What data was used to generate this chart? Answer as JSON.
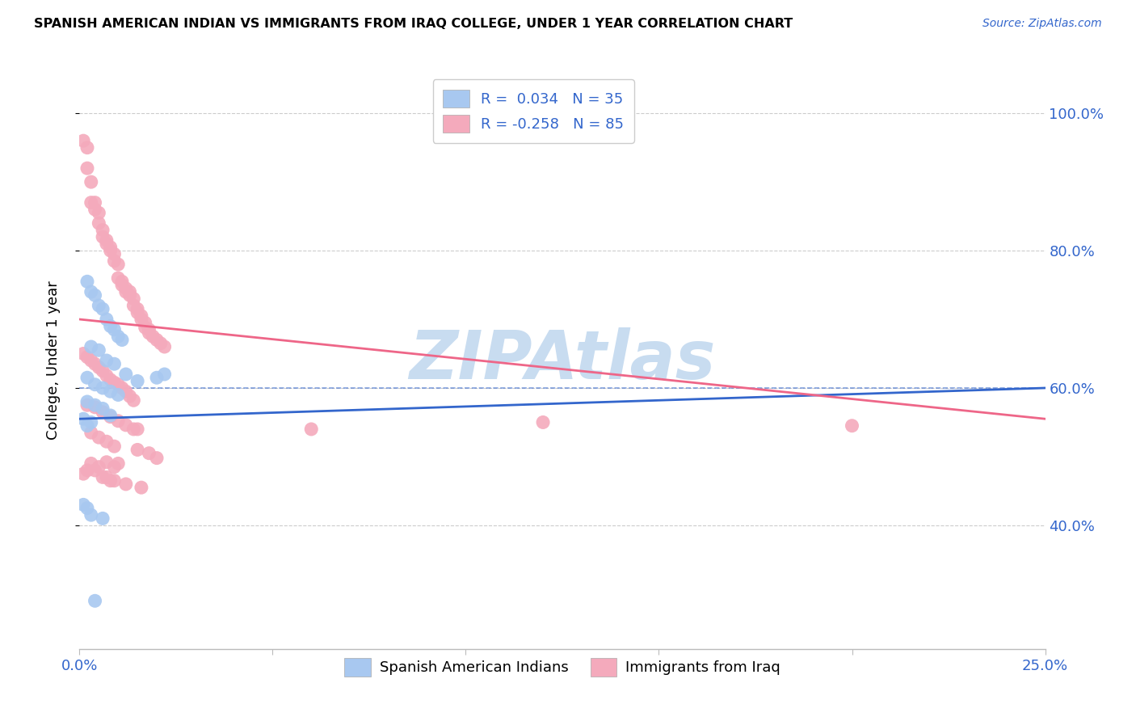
{
  "title": "SPANISH AMERICAN INDIAN VS IMMIGRANTS FROM IRAQ COLLEGE, UNDER 1 YEAR CORRELATION CHART",
  "source": "Source: ZipAtlas.com",
  "ylabel": "College, Under 1 year",
  "ytick_labels": [
    "40.0%",
    "60.0%",
    "80.0%",
    "100.0%"
  ],
  "ytick_values": [
    0.4,
    0.6,
    0.8,
    1.0
  ],
  "xmin": 0.0,
  "xmax": 0.25,
  "ymin": 0.22,
  "ymax": 1.06,
  "blue_color": "#A8C8F0",
  "pink_color": "#F4AABC",
  "blue_line_color": "#3366CC",
  "pink_line_color": "#EE6688",
  "legend_R_blue": "0.034",
  "legend_N_blue": "35",
  "legend_R_pink": "-0.258",
  "legend_N_pink": "85",
  "legend_text_color": "#3366CC",
  "watermark": "ZIPAtlas",
  "watermark_color": "#C8DCF0",
  "grid_color": "#CCCCCC",
  "blue_scatter_x": [
    0.002,
    0.003,
    0.004,
    0.005,
    0.006,
    0.007,
    0.008,
    0.009,
    0.01,
    0.011,
    0.003,
    0.005,
    0.007,
    0.009,
    0.012,
    0.002,
    0.004,
    0.006,
    0.008,
    0.01,
    0.002,
    0.004,
    0.006,
    0.008,
    0.001,
    0.003,
    0.015,
    0.02,
    0.022,
    0.002,
    0.001,
    0.002,
    0.003,
    0.006,
    0.004
  ],
  "blue_scatter_y": [
    0.755,
    0.74,
    0.735,
    0.72,
    0.715,
    0.7,
    0.69,
    0.685,
    0.675,
    0.67,
    0.66,
    0.655,
    0.64,
    0.635,
    0.62,
    0.615,
    0.605,
    0.6,
    0.595,
    0.59,
    0.58,
    0.575,
    0.57,
    0.56,
    0.555,
    0.55,
    0.61,
    0.615,
    0.62,
    0.545,
    0.43,
    0.425,
    0.415,
    0.41,
    0.29
  ],
  "pink_scatter_x": [
    0.001,
    0.002,
    0.002,
    0.003,
    0.003,
    0.004,
    0.004,
    0.005,
    0.005,
    0.006,
    0.006,
    0.007,
    0.007,
    0.008,
    0.008,
    0.009,
    0.009,
    0.01,
    0.01,
    0.011,
    0.011,
    0.012,
    0.012,
    0.013,
    0.013,
    0.014,
    0.014,
    0.015,
    0.015,
    0.016,
    0.016,
    0.017,
    0.017,
    0.018,
    0.018,
    0.019,
    0.02,
    0.021,
    0.022,
    0.001,
    0.002,
    0.003,
    0.004,
    0.005,
    0.006,
    0.007,
    0.008,
    0.009,
    0.01,
    0.011,
    0.012,
    0.013,
    0.014,
    0.002,
    0.004,
    0.006,
    0.008,
    0.01,
    0.012,
    0.014,
    0.003,
    0.005,
    0.007,
    0.009,
    0.015,
    0.018,
    0.02,
    0.007,
    0.009,
    0.015,
    0.06,
    0.12,
    0.2,
    0.004,
    0.006,
    0.008,
    0.012,
    0.016,
    0.01,
    0.003,
    0.005,
    0.002,
    0.001,
    0.007,
    0.009
  ],
  "pink_scatter_y": [
    0.96,
    0.95,
    0.92,
    0.9,
    0.87,
    0.86,
    0.87,
    0.84,
    0.855,
    0.83,
    0.82,
    0.815,
    0.81,
    0.805,
    0.8,
    0.795,
    0.785,
    0.78,
    0.76,
    0.755,
    0.75,
    0.745,
    0.74,
    0.74,
    0.735,
    0.73,
    0.72,
    0.715,
    0.71,
    0.705,
    0.7,
    0.695,
    0.688,
    0.685,
    0.68,
    0.675,
    0.67,
    0.665,
    0.66,
    0.65,
    0.645,
    0.64,
    0.635,
    0.63,
    0.625,
    0.618,
    0.612,
    0.608,
    0.605,
    0.6,
    0.595,
    0.588,
    0.582,
    0.575,
    0.572,
    0.565,
    0.558,
    0.552,
    0.546,
    0.54,
    0.535,
    0.528,
    0.522,
    0.515,
    0.51,
    0.505,
    0.498,
    0.492,
    0.485,
    0.54,
    0.54,
    0.55,
    0.545,
    0.48,
    0.47,
    0.465,
    0.46,
    0.455,
    0.49,
    0.49,
    0.485,
    0.48,
    0.475,
    0.47,
    0.465
  ],
  "blue_trend_x": [
    0.0,
    0.25
  ],
  "blue_trend_y": [
    0.555,
    0.6
  ],
  "pink_trend_x": [
    0.0,
    0.25
  ],
  "pink_trend_y": [
    0.7,
    0.555
  ],
  "dash_line_y": 0.6,
  "xtick_positions": [
    0.0,
    0.05,
    0.1,
    0.15,
    0.2,
    0.25
  ]
}
